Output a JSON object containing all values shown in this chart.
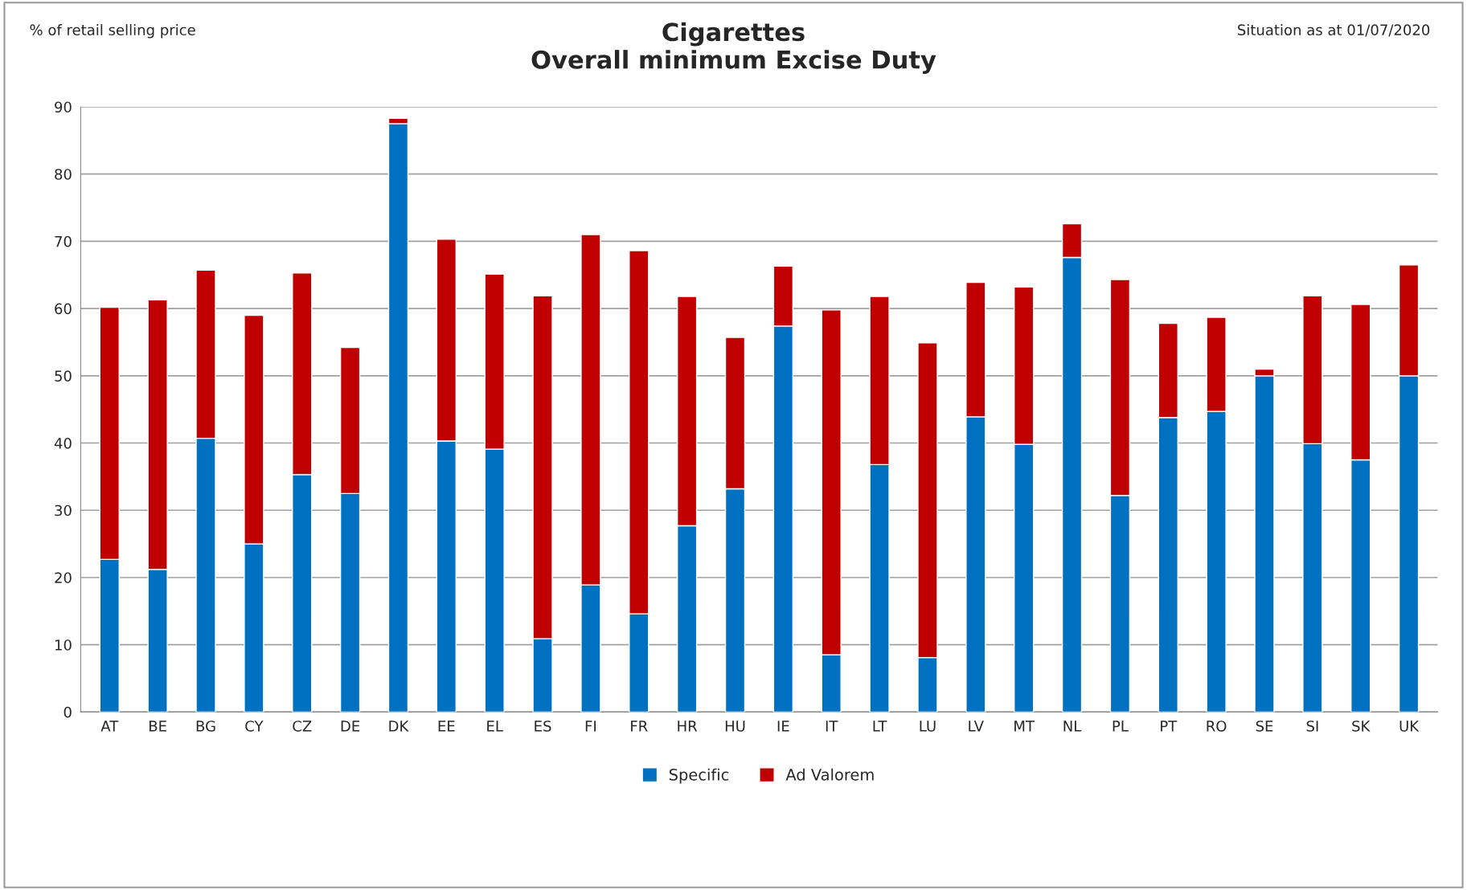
{
  "chart_data": {
    "type": "bar",
    "title": "Cigarettes\nOverall minimum Excise Duty",
    "ylabel": "% of retail selling price",
    "annotations": [
      "Situation as at 01/07/2020"
    ],
    "categories": [
      "AT",
      "BE",
      "BG",
      "CY",
      "CZ",
      "DE",
      "DK",
      "EE",
      "EL",
      "ES",
      "FI",
      "FR",
      "HR",
      "HU",
      "IE",
      "IT",
      "LT",
      "LU",
      "LV",
      "MT",
      "NL",
      "PL",
      "PT",
      "RO",
      "SE",
      "SI",
      "SK",
      "UK"
    ],
    "stacked": true,
    "series": [
      {
        "name": "Specific",
        "color": "#0070c0",
        "values": [
          22.7,
          21.2,
          40.7,
          25.0,
          35.3,
          32.5,
          87.5,
          40.3,
          39.1,
          10.9,
          18.9,
          14.6,
          27.7,
          33.2,
          57.4,
          8.5,
          36.8,
          8.1,
          43.9,
          39.8,
          67.6,
          32.2,
          43.8,
          44.7,
          50.0,
          39.9,
          37.5,
          50.0
        ]
      },
      {
        "name": "Ad Valorem",
        "color": "#c00000",
        "values": [
          37.5,
          40.1,
          25.0,
          34.0,
          30.0,
          21.7,
          0.8,
          30.0,
          26.0,
          51.0,
          52.1,
          54.0,
          34.1,
          22.5,
          8.9,
          51.3,
          25.0,
          46.8,
          20.0,
          23.4,
          5.0,
          32.1,
          14.0,
          14.0,
          1.0,
          22.0,
          23.1,
          16.5
        ]
      }
    ],
    "ylim": [
      0,
      90
    ],
    "yticks": [
      0,
      10,
      20,
      30,
      40,
      50,
      60,
      70,
      80,
      90
    ],
    "grid": "y",
    "legend": "bottom"
  }
}
